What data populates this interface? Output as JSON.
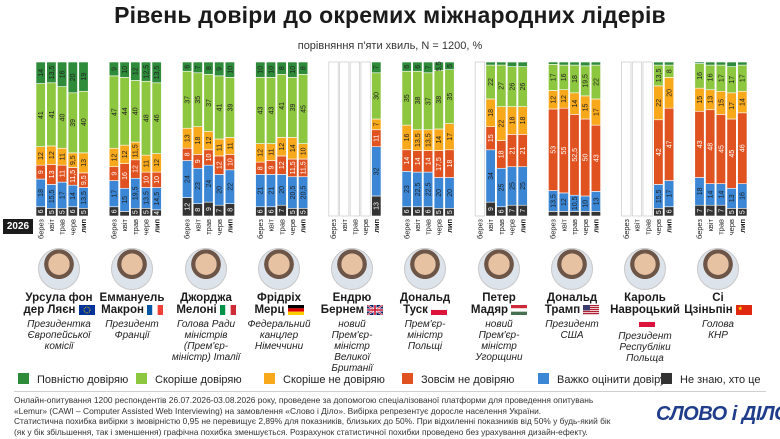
{
  "title": "Рівень довіри до окремих міжнародних лідерів",
  "subtitle": "порівняння п'яти хвиль, N = 1200, %",
  "year_badge": "2026",
  "colors": {
    "full_trust": "#2e8b3a",
    "rather_trust": "#8dc63f",
    "rather_distrust": "#f7a81b",
    "full_distrust": "#e0521f",
    "hard_to_say": "#3b87d6",
    "dont_know_who": "#333333"
  },
  "waves": [
    "берез",
    "квіт",
    "трав",
    "черв",
    "лип"
  ],
  "legend": [
    {
      "label": "Повністю довіряю",
      "color": "#2e8b3a"
    },
    {
      "label": "Скоріше довіряю",
      "color": "#8dc63f"
    },
    {
      "label": "Скоріше не довіряю",
      "color": "#f7a81b"
    },
    {
      "label": "Зовсім не довіряю",
      "color": "#e0521f"
    },
    {
      "label": "Важко оцінити довіру",
      "color": "#3b87d6"
    },
    {
      "label": "Не знаю, хто це",
      "color": "#333333"
    }
  ],
  "leaders": [
    {
      "name_line1": "Урсула фон",
      "name_line2": "дер Ляєн",
      "role_line1": "Президентка",
      "role_line2": "Європейської",
      "role_line3": "комісії",
      "flag": "eu"
    },
    {
      "name_line1": "Еммануель",
      "name_line2": "Макрон",
      "role_line1": "Президент",
      "role_line2": "Франції",
      "role_line3": "",
      "flag": "fr"
    },
    {
      "name_line1": "Джорджа",
      "name_line2": "Мелоні",
      "role_line1": "Голова Ради",
      "role_line2": "міністрів (Прем'єр-",
      "role_line3": "міністр) Італії",
      "flag": "it"
    },
    {
      "name_line1": "Фрідріх",
      "name_line2": "Мерц",
      "role_line1": "Федеральний",
      "role_line2": "канцлер",
      "role_line3": "Німеччини",
      "flag": "de"
    },
    {
      "name_line1": "Ендрю",
      "name_line2": "Бернем",
      "role_line1": "новий",
      "role_line2": "Прем'єр-міністр",
      "role_line3": "Великої Британії",
      "flag": "gb"
    },
    {
      "name_line1": "Дональд",
      "name_line2": "Туск",
      "role_line1": "Прем'єр-міністр",
      "role_line2": "Польщі",
      "role_line3": "",
      "flag": "pl"
    },
    {
      "name_line1": "Петер",
      "name_line2": "Мадяр",
      "role_line1": "новий",
      "role_line2": "Прем'єр-міністр",
      "role_line3": "Угорщини",
      "flag": "hu"
    },
    {
      "name_line1": "Дональд",
      "name_line2": "Трамп",
      "role_line1": "Президент",
      "role_line2": "США",
      "role_line3": "",
      "flag": "us"
    },
    {
      "name_line1": "Кароль",
      "name_line2": "Навроцький",
      "role_line1": "Президент",
      "role_line2": "Республіки",
      "role_line3": "Польща",
      "flag": "pl"
    },
    {
      "name_line1": "Сі",
      "name_line2": "Цзіньпін",
      "role_line1": "Голова",
      "role_line2": "КНР",
      "role_line3": "",
      "flag": "cn"
    }
  ],
  "chart_data": {
    "type": "bar",
    "stacked": true,
    "orientation": "vertical",
    "ylim": [
      0,
      100
    ],
    "waves": [
      "берез",
      "квіт",
      "трав",
      "черв",
      "лип"
    ],
    "categories_order": [
      "Не знаю, хто це",
      "Важко оцінити довіру",
      "Зовсім не довіряю",
      "Скоріше не довіряю",
      "Скоріше довіряю",
      "Повністю довіряю"
    ],
    "groups": [
      {
        "leader": "Урсула фон дер Ляєн",
        "bars": [
          [
            6,
            18,
            9,
            12,
            41,
            14
          ],
          [
            5,
            15.5,
            13,
            12,
            41,
            13.5
          ],
          [
            5,
            17,
            11,
            11,
            40,
            16
          ],
          [
            6,
            14,
            11.5,
            9.5,
            39,
            20
          ],
          [
            5,
            13.5,
            9.5,
            13,
            40,
            19
          ]
        ]
      },
      {
        "leader": "Еммануель Макрон",
        "bars": [
          [
            6,
            17,
            9,
            12,
            47,
            9
          ],
          [
            3,
            15,
            16,
            12,
            44,
            10
          ],
          [
            5,
            19.5,
            12,
            11.5,
            40,
            12
          ],
          [
            5,
            13.5,
            10,
            11,
            48,
            12.5
          ],
          [
            4,
            14.5,
            10,
            12,
            46,
            13.5
          ]
        ]
      },
      {
        "leader": "Джорджа Мелоні",
        "bars": [
          [
            12,
            24,
            8,
            13,
            37,
            6
          ],
          [
            8,
            23,
            9,
            18,
            35,
            7
          ],
          [
            9,
            24,
            10,
            12,
            37,
            8
          ],
          [
            7,
            20,
            12,
            11,
            41,
            9
          ],
          [
            8,
            22,
            10,
            11,
            39,
            10
          ]
        ]
      },
      {
        "leader": "Фрідріх Мерц",
        "bars": [
          [
            6,
            21,
            8,
            12,
            43,
            10
          ],
          [
            6,
            21,
            9,
            11,
            43,
            10
          ],
          [
            7,
            20,
            12,
            12,
            41,
            8
          ],
          [
            5,
            20.5,
            11.5,
            14,
            39,
            10
          ],
          [
            5,
            20.5,
            11.5,
            10,
            45,
            8
          ]
        ]
      },
      {
        "leader": "Ендрю Бернем",
        "bars": [
          [
            null,
            null,
            null,
            null,
            null,
            null
          ],
          [
            null,
            null,
            null,
            null,
            null,
            null
          ],
          [
            null,
            null,
            null,
            null,
            null,
            null
          ],
          [
            null,
            null,
            null,
            null,
            null,
            null
          ],
          [
            13,
            32,
            11,
            7,
            30,
            7
          ]
        ]
      },
      {
        "leader": "Дональд Туск",
        "bars": [
          [
            6,
            23,
            14,
            16,
            35,
            6
          ],
          [
            6,
            22.5,
            14,
            13.5,
            38,
            6
          ],
          [
            6,
            22.5,
            14,
            13.5,
            37,
            7
          ],
          [
            5,
            20,
            17.5,
            14,
            38,
            5.5
          ],
          [
            5,
            20,
            18,
            17,
            35,
            5
          ]
        ]
      },
      {
        "leader": "Петер Мадяр",
        "bars": [
          [
            null,
            null,
            null,
            null,
            null,
            null
          ],
          [
            9,
            34,
            15,
            18,
            22,
            2
          ],
          [
            6,
            25,
            18,
            22,
            27,
            2
          ],
          [
            7,
            25,
            21,
            18,
            26,
            3
          ],
          [
            7,
            25,
            21,
            18,
            26,
            3
          ]
        ]
      },
      {
        "leader": "Дональд Трамп",
        "bars": [
          [
            3,
            13.5,
            53,
            12,
            17,
            1.5
          ],
          [
            3,
            12,
            55,
            12,
            16,
            2
          ],
          [
            3,
            10.5,
            52.5,
            14,
            18,
            2
          ],
          [
            3,
            10,
            50,
            15,
            19.5,
            2.5
          ],
          [
            3,
            13,
            43,
            17,
            22,
            2
          ]
        ]
      },
      {
        "leader": "Кароль Навроцький",
        "bars": [
          [
            null,
            null,
            null,
            null,
            null,
            null
          ],
          [
            null,
            null,
            null,
            null,
            null,
            null
          ],
          [
            null,
            null,
            null,
            null,
            null,
            null
          ],
          [
            5,
            15.5,
            42,
            22,
            13.5,
            2
          ],
          [
            6,
            17,
            47,
            20,
            8,
            2
          ]
        ]
      },
      {
        "leader": "Сі Цзіньпін",
        "bars": [
          [
            7,
            18,
            43,
            15,
            16,
            1
          ],
          [
            7,
            14,
            48,
            13,
            16,
            2
          ],
          [
            7,
            14,
            45,
            15,
            17,
            2
          ],
          [
            5,
            13,
            45,
            17,
            17,
            3
          ],
          [
            5,
            16,
            46,
            14,
            17,
            2
          ]
        ]
      }
    ]
  },
  "footnote_lines": [
    "Онлайн-опитування 1200 респондентів 26.07.2026-03.08.2026 року, проведене за допомогою спеціалізованої платформи для проведення опитувань",
    "«Lemur» (CAWI – Computer Assisted Web Interviewing) на замовлення «Слово і Діло». Вибірка репрезентує доросле населення України.",
    "Статистична похибка вибірки з імовірністю 0,95 не перевищує 2,89% для показників, близьких до 50%. При відхиленні показників від 50% у будь-який бік",
    "(як у бік збільшення, так і зменшення) графічна похибка зменшується. Розрахунок статистичної похибки проведено без урахування дизайн-ефекту."
  ],
  "logo": "СЛОВО і ДІЛО"
}
